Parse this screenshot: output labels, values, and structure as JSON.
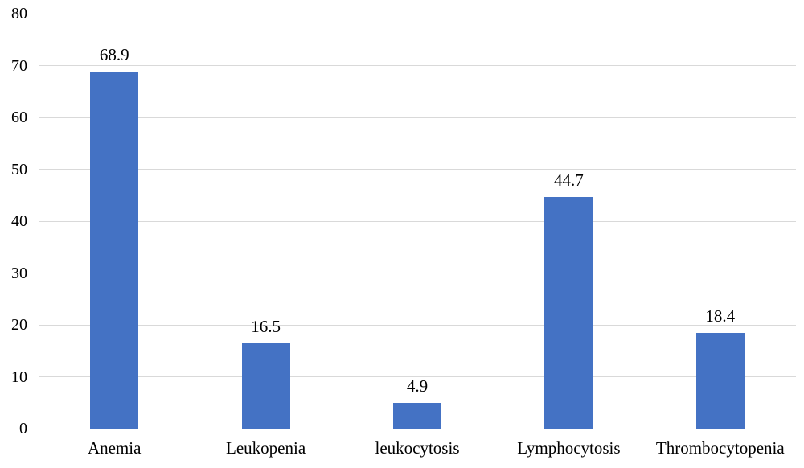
{
  "chart_data": {
    "type": "bar",
    "title": "",
    "xlabel": "",
    "ylabel": "",
    "categories": [
      "Anemia",
      "Leukopenia",
      "leukocytosis",
      "Lymphocytosis",
      "Thrombocytopenia"
    ],
    "values": [
      68.9,
      16.5,
      4.9,
      44.7,
      18.4
    ],
    "value_labels": [
      "68.9",
      "16.5",
      "4.9",
      "44.7",
      "18.4"
    ],
    "ylim": [
      0,
      80
    ],
    "yticks": [
      0,
      10,
      20,
      30,
      40,
      50,
      60,
      70,
      80
    ],
    "grid": true,
    "legend": "none",
    "bar_color": "#4472C4",
    "gridline_color": "#D9D9D9",
    "text_color": "#000000",
    "background_color": "#FFFFFF"
  }
}
